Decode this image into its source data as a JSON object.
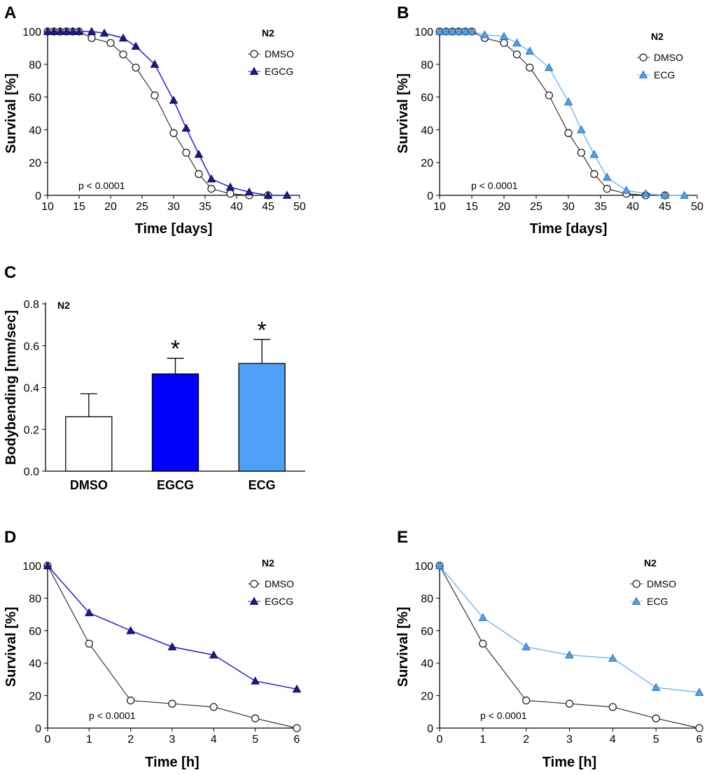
{
  "colors": {
    "dmso_line": "#333333",
    "egcg": "#1f1fd6",
    "egcg_marker": "#1a1a8c",
    "ecg": "#79b8f5",
    "ecg_marker": "#4fa0ea",
    "bar_egcg": "#0000ff",
    "bar_ecg": "#4fa1f7"
  },
  "chart_data": [
    {
      "panel": "A",
      "type": "line",
      "xlabel": "Time [days]",
      "ylabel": "Survival [%]",
      "xlim": [
        10,
        50
      ],
      "ylim": [
        0,
        100
      ],
      "xticks": [
        10,
        15,
        20,
        25,
        30,
        35,
        40,
        45,
        50
      ],
      "yticks": [
        0,
        20,
        40,
        60,
        80,
        100
      ],
      "legend_title": "N2",
      "legend_position": "top-right",
      "annotation": "p < 0.0001",
      "series": [
        {
          "name": "DMSO",
          "marker": "open-circle",
          "x": [
            10,
            11,
            12,
            13,
            14,
            15,
            17,
            20,
            22,
            24,
            27,
            30,
            32,
            34,
            36,
            39,
            42,
            45
          ],
          "y": [
            100,
            100,
            100,
            100,
            100,
            100,
            96,
            93,
            86,
            78,
            61,
            38,
            26,
            13,
            4,
            1,
            0,
            0
          ]
        },
        {
          "name": "EGCG",
          "marker": "filled-triangle",
          "x": [
            10,
            11,
            12,
            13,
            14,
            15,
            17,
            19,
            22,
            24,
            27,
            30,
            32,
            34,
            36,
            39,
            42,
            45,
            48
          ],
          "y": [
            100,
            100,
            100,
            100,
            100,
            100,
            100,
            99,
            96,
            91,
            80,
            58,
            41,
            25,
            10,
            5,
            2,
            0,
            0
          ]
        }
      ]
    },
    {
      "panel": "B",
      "type": "line",
      "xlabel": "Time [days]",
      "ylabel": "Survival [%]",
      "xlim": [
        10,
        50
      ],
      "ylim": [
        0,
        100
      ],
      "xticks": [
        10,
        15,
        20,
        25,
        30,
        35,
        40,
        45,
        50
      ],
      "yticks": [
        0,
        20,
        40,
        60,
        80,
        100
      ],
      "legend_title": "N2",
      "legend_position": "top-right",
      "annotation": "p < 0.0001",
      "series": [
        {
          "name": "DMSO",
          "marker": "open-circle",
          "x": [
            10,
            11,
            12,
            13,
            14,
            15,
            17,
            20,
            22,
            24,
            27,
            30,
            32,
            34,
            36,
            39,
            42,
            45
          ],
          "y": [
            100,
            100,
            100,
            100,
            100,
            100,
            96,
            93,
            86,
            78,
            61,
            38,
            26,
            13,
            4,
            1,
            0,
            0
          ]
        },
        {
          "name": "ECG",
          "marker": "filled-triangle",
          "x": [
            10,
            11,
            12,
            13,
            14,
            15,
            17,
            20,
            22,
            24,
            27,
            30,
            32,
            34,
            36,
            39,
            42,
            45,
            48
          ],
          "y": [
            100,
            100,
            100,
            100,
            100,
            100,
            98,
            97,
            93,
            88,
            78,
            57,
            40,
            25,
            11,
            3,
            1,
            0,
            0
          ]
        }
      ]
    },
    {
      "panel": "C",
      "type": "bar",
      "ylabel": "Bodybending [mm/sec]",
      "ylim": [
        0,
        0.8
      ],
      "yticks": [
        0.0,
        0.2,
        0.4,
        0.6,
        0.8
      ],
      "ytick_labels": [
        "0.0",
        "0.2",
        "0.4",
        "0.6",
        "0.8"
      ],
      "legend_title": "N2",
      "categories": [
        "DMSO",
        "EGCG",
        "ECG"
      ],
      "values": [
        0.26,
        0.465,
        0.515
      ],
      "errors": [
        0.11,
        0.075,
        0.115
      ],
      "significance": [
        "",
        "*",
        "*"
      ]
    },
    {
      "panel": "D",
      "type": "line",
      "xlabel": "Time [h]",
      "ylabel": "Survival [%]",
      "xlim": [
        0,
        6
      ],
      "ylim": [
        0,
        100
      ],
      "xticks": [
        0,
        1,
        2,
        3,
        4,
        5,
        6
      ],
      "yticks": [
        0,
        20,
        40,
        60,
        80,
        100
      ],
      "legend_title": "N2",
      "legend_position": "top-right",
      "annotation": "p < 0.0001",
      "series": [
        {
          "name": "DMSO",
          "marker": "open-circle",
          "x": [
            0,
            1,
            2,
            3,
            4,
            5,
            6
          ],
          "y": [
            100,
            52,
            17,
            15,
            13,
            6,
            0
          ]
        },
        {
          "name": "EGCG",
          "marker": "filled-triangle",
          "x": [
            0,
            1,
            2,
            3,
            4,
            5,
            6
          ],
          "y": [
            100,
            71,
            60,
            50,
            45,
            29,
            24
          ]
        }
      ]
    },
    {
      "panel": "E",
      "type": "line",
      "xlabel": "Time [h]",
      "ylabel": "Survival [%]",
      "xlim": [
        0,
        6
      ],
      "ylim": [
        0,
        100
      ],
      "xticks": [
        0,
        1,
        2,
        3,
        4,
        5,
        6
      ],
      "yticks": [
        0,
        20,
        40,
        60,
        80,
        100
      ],
      "legend_title": "N2",
      "legend_position": "top-right",
      "annotation": "p < 0.0001",
      "series": [
        {
          "name": "DMSO",
          "marker": "open-circle",
          "x": [
            0,
            1,
            2,
            3,
            4,
            5,
            6
          ],
          "y": [
            100,
            52,
            17,
            15,
            13,
            6,
            0
          ]
        },
        {
          "name": "ECG",
          "marker": "filled-triangle",
          "x": [
            0,
            1,
            2,
            3,
            4,
            5,
            6
          ],
          "y": [
            100,
            68,
            50,
            45,
            43,
            25,
            22
          ]
        }
      ]
    }
  ]
}
